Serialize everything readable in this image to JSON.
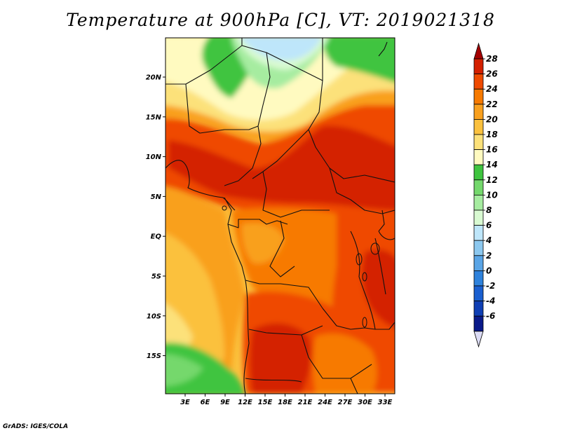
{
  "title": "Temperature at 900hPa [C], VT: 2019021318",
  "footer": "GrADS: IGES/COLA",
  "map": {
    "variable": "Temperature",
    "level": "900hPa",
    "units": "C",
    "valid_time": "2019021318",
    "lon_labels": [
      "3E",
      "6E",
      "9E",
      "12E",
      "15E",
      "18E",
      "21E",
      "24E",
      "27E",
      "30E",
      "33E"
    ],
    "lat_labels": [
      "20N",
      "15N",
      "10N",
      "5N",
      "EQ",
      "5S",
      "10S",
      "15S"
    ]
  },
  "colorbar": {
    "labels": [
      "28",
      "26",
      "24",
      "22",
      "20",
      "18",
      "16",
      "14",
      "12",
      "10",
      "8",
      "6",
      "4",
      "2",
      "0",
      "-2",
      "-4",
      "-6"
    ],
    "colors": [
      "#a50000",
      "#d42000",
      "#ef4a00",
      "#f77a00",
      "#f9a01e",
      "#fbc13e",
      "#fce17a",
      "#fffac0",
      "#3fc43f",
      "#74d86c",
      "#a6eca0",
      "#d9fad2",
      "#bee6fa",
      "#8cc8ef",
      "#5aa5e6",
      "#2e82dc",
      "#1a5fd0",
      "#0f3fb4",
      "#0a1a8a",
      "#dcdcf5"
    ]
  }
}
